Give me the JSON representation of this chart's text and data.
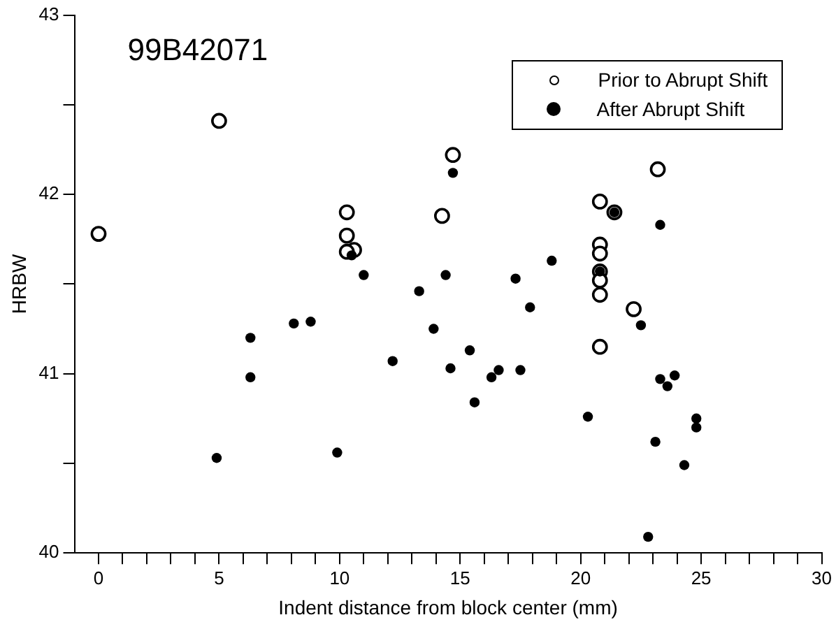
{
  "chart_data": {
    "type": "scatter",
    "title": "99B42071",
    "xlabel": "Indent distance from block center (mm)",
    "ylabel": "HRBW",
    "xlim": [
      -1,
      30
    ],
    "ylim": [
      40,
      43
    ],
    "xticks": [
      0,
      {
        "value": 1,
        "label": null
      },
      {
        "value": 2,
        "label": null
      },
      {
        "value": 3,
        "label": null
      },
      {
        "value": 4,
        "label": null
      },
      5,
      {
        "value": 6,
        "label": null
      },
      {
        "value": 7,
        "label": null
      },
      {
        "value": 8,
        "label": null
      },
      {
        "value": 9,
        "label": null
      },
      10,
      {
        "value": 11,
        "label": null
      },
      {
        "value": 12,
        "label": null
      },
      {
        "value": 13,
        "label": null
      },
      {
        "value": 14,
        "label": null
      },
      15,
      {
        "value": 16,
        "label": null
      },
      {
        "value": 17,
        "label": null
      },
      {
        "value": 18,
        "label": null
      },
      {
        "value": 19,
        "label": null
      },
      20,
      {
        "value": 21,
        "label": null
      },
      {
        "value": 22,
        "label": null
      },
      {
        "value": 23,
        "label": null
      },
      {
        "value": 24,
        "label": null
      },
      25,
      {
        "value": 26,
        "label": null
      },
      {
        "value": 27,
        "label": null
      },
      {
        "value": 28,
        "label": null
      },
      {
        "value": 29,
        "label": null
      },
      30
    ],
    "yticks": [
      40,
      {
        "value": 40.5,
        "label": null
      },
      41,
      {
        "value": 41.5,
        "label": null
      },
      42,
      {
        "value": 42.5,
        "label": null
      },
      43
    ],
    "grid": false,
    "legend": "top right",
    "marker": "circle",
    "series": [
      {
        "name": "Prior to Abrupt Shift",
        "color": "#ffffff",
        "x": [
          0,
          5,
          10.3,
          10.3,
          10.6,
          10.3,
          14.25,
          14.7,
          20.8,
          21.4,
          23.2,
          20.8,
          20.8,
          20.8,
          20.8,
          20.8,
          22.2,
          20.8
        ],
        "values": [
          41.78,
          42.41,
          41.9,
          41.77,
          41.69,
          41.68,
          41.88,
          42.22,
          41.96,
          41.9,
          42.14,
          41.72,
          41.67,
          41.57,
          41.52,
          41.44,
          41.36,
          41.15
        ]
      },
      {
        "name": "After Abrupt Shift",
        "color": "#000000",
        "x": [
          10.5,
          11.0,
          14.7,
          21.4,
          23.3,
          18.8,
          14.4,
          17.3,
          20.8,
          13.3,
          17.9,
          13.9,
          15.4,
          14.6,
          16.3,
          16.6,
          17.5,
          15.6,
          20.3,
          22.5,
          23.3,
          23.6,
          23.9,
          24.8,
          24.8,
          23.1,
          24.3,
          22.8,
          6.3,
          6.3,
          8.1,
          8.8,
          4.9,
          9.9,
          12.2
        ],
        "values": [
          41.66,
          41.55,
          42.12,
          41.9,
          41.83,
          41.63,
          41.55,
          41.53,
          41.57,
          41.46,
          41.37,
          41.25,
          41.13,
          41.03,
          40.98,
          41.02,
          41.02,
          40.84,
          40.76,
          41.27,
          40.97,
          40.93,
          40.99,
          40.75,
          40.7,
          40.62,
          40.49,
          40.09,
          41.2,
          40.98,
          41.28,
          41.29,
          40.53,
          40.56,
          41.07
        ]
      }
    ]
  }
}
